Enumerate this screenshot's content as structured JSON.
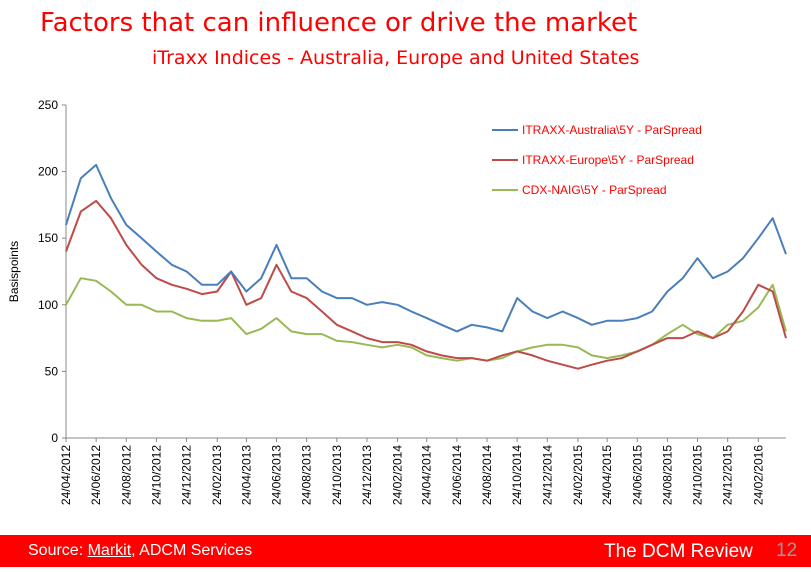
{
  "title": "Factors that can influence or drive the market",
  "subtitle": "iTraxx Indices - Australia, Europe and United States",
  "footer": {
    "source_prefix": "Source: ",
    "source_link": "Markit",
    "source_suffix": ", ADCM Services",
    "brand": "The DCM Review",
    "page_number": "12"
  },
  "chart_data": {
    "type": "line",
    "ylabel": "Basispoints",
    "ylim": [
      0,
      250
    ],
    "yticks": [
      0,
      50,
      100,
      150,
      200,
      250
    ],
    "xlim": [
      "2012-04-24",
      "2016-04-20"
    ],
    "xticks": [
      "24/04/2012",
      "24/06/2012",
      "24/08/2012",
      "24/10/2012",
      "24/12/2012",
      "24/02/2013",
      "24/04/2013",
      "24/06/2013",
      "24/08/2013",
      "24/10/2013",
      "24/12/2013",
      "24/02/2014",
      "24/04/2014",
      "24/06/2014",
      "24/08/2014",
      "24/10/2014",
      "24/12/2014",
      "24/02/2015",
      "24/04/2015",
      "24/06/2015",
      "24/08/2015",
      "24/10/2015",
      "24/12/2015",
      "24/02/2016"
    ],
    "grid": false,
    "legend_position": "top-right",
    "x": [
      "2012-04-24",
      "2012-05-24",
      "2012-06-24",
      "2012-07-24",
      "2012-08-24",
      "2012-09-24",
      "2012-10-24",
      "2012-11-24",
      "2012-12-24",
      "2013-01-24",
      "2013-02-24",
      "2013-03-24",
      "2013-04-24",
      "2013-05-24",
      "2013-06-24",
      "2013-07-24",
      "2013-08-24",
      "2013-09-24",
      "2013-10-24",
      "2013-11-24",
      "2013-12-24",
      "2014-01-24",
      "2014-02-24",
      "2014-03-24",
      "2014-04-24",
      "2014-05-24",
      "2014-06-24",
      "2014-07-24",
      "2014-08-24",
      "2014-09-24",
      "2014-10-24",
      "2014-11-24",
      "2014-12-24",
      "2015-01-24",
      "2015-02-24",
      "2015-03-24",
      "2015-04-24",
      "2015-05-24",
      "2015-06-24",
      "2015-07-24",
      "2015-08-24",
      "2015-09-24",
      "2015-10-24",
      "2015-11-24",
      "2015-12-24",
      "2016-01-24",
      "2016-02-24",
      "2016-03-24",
      "2016-04-20"
    ],
    "series": [
      {
        "name": "ITRAXX-Australia\\5Y - ParSpread",
        "color": "#4a7ebb",
        "values": [
          160,
          195,
          205,
          180,
          160,
          150,
          140,
          130,
          125,
          115,
          115,
          125,
          110,
          120,
          145,
          120,
          120,
          110,
          105,
          105,
          100,
          102,
          100,
          95,
          90,
          85,
          80,
          85,
          83,
          80,
          105,
          95,
          90,
          95,
          90,
          85,
          88,
          88,
          90,
          95,
          110,
          120,
          135,
          120,
          125,
          135,
          150,
          165,
          138
        ]
      },
      {
        "name": "ITRAXX-Europe\\5Y - ParSpread",
        "color": "#be4b48",
        "values": [
          140,
          170,
          178,
          165,
          145,
          130,
          120,
          115,
          112,
          108,
          110,
          125,
          100,
          105,
          130,
          110,
          105,
          95,
          85,
          80,
          75,
          72,
          72,
          70,
          65,
          62,
          60,
          60,
          58,
          62,
          65,
          62,
          58,
          55,
          52,
          55,
          58,
          60,
          65,
          70,
          75,
          75,
          80,
          75,
          80,
          95,
          115,
          110,
          75
        ]
      },
      {
        "name": "CDX-NAIG\\5Y - ParSpread",
        "color": "#98b954",
        "values": [
          100,
          120,
          118,
          110,
          100,
          100,
          95,
          95,
          90,
          88,
          88,
          90,
          78,
          82,
          90,
          80,
          78,
          78,
          73,
          72,
          70,
          68,
          70,
          68,
          62,
          60,
          58,
          60,
          58,
          60,
          65,
          68,
          70,
          70,
          68,
          62,
          60,
          62,
          65,
          70,
          78,
          85,
          78,
          75,
          85,
          88,
          98,
          115,
          80
        ]
      }
    ]
  }
}
